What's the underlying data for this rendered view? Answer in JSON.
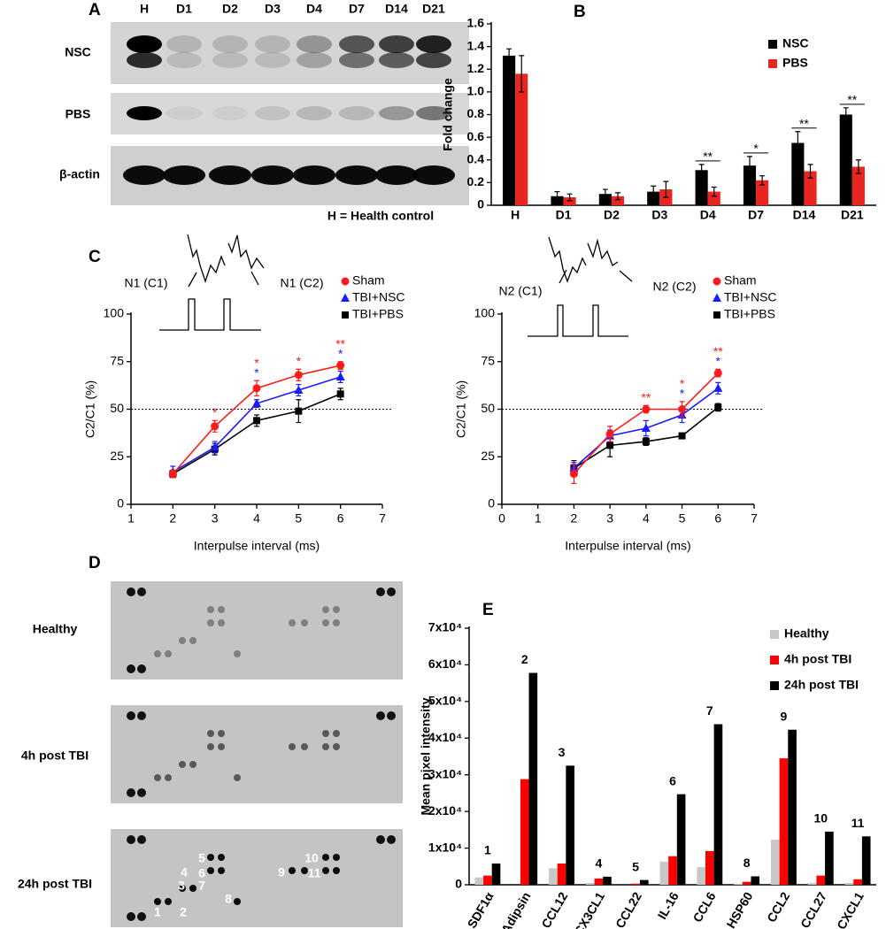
{
  "figure": {
    "panel_labels": [
      "A",
      "B",
      "C",
      "D",
      "E"
    ],
    "blot": {
      "lanes": [
        "H",
        "D1",
        "D2",
        "D3",
        "D4",
        "D7",
        "D14",
        "D21"
      ],
      "rows": [
        "NSC",
        "PBS",
        "β-actin"
      ],
      "note": "H = Health control"
    },
    "array": {
      "rows": [
        "Healthy",
        "4h post TBI",
        "24h post TBI"
      ],
      "spot_numbers": [
        "1",
        "2",
        "3",
        "4",
        "5",
        "6",
        "7",
        "8",
        "9",
        "10",
        "11"
      ]
    }
  },
  "chart_data": [
    {
      "type": "bar",
      "y_label": "Fold change",
      "categories": [
        "H",
        "D1",
        "D2",
        "D3",
        "D4",
        "D7",
        "D14",
        "D21"
      ],
      "series": [
        {
          "name": "NSC",
          "color": "#000000",
          "values": [
            1.32,
            0.08,
            0.1,
            0.12,
            0.31,
            0.35,
            0.55,
            0.8
          ],
          "errors": [
            0.06,
            0.04,
            0.04,
            0.05,
            0.05,
            0.08,
            0.1,
            0.06
          ]
        },
        {
          "name": "PBS",
          "color": "#e8251e",
          "values": [
            1.16,
            0.07,
            0.08,
            0.14,
            0.12,
            0.22,
            0.3,
            0.34
          ],
          "errors": [
            0.16,
            0.03,
            0.03,
            0.07,
            0.04,
            0.04,
            0.06,
            0.06
          ]
        }
      ],
      "significance": [
        null,
        null,
        null,
        null,
        "**",
        "*",
        "**",
        "**"
      ],
      "ylim": [
        0,
        1.6
      ],
      "yticks": [
        0,
        0.2,
        0.4,
        0.6,
        0.8,
        {
          "value": 1,
          "label": "1.0"
        },
        1.2,
        1.4,
        1.6
      ],
      "legend": "upper right"
    },
    {
      "type": "line",
      "x_label": "Interpulse interval (ms)",
      "y_label": "C2/C1 (%)",
      "inset_labels": [
        "N1 (C1)",
        "N1 (C2)"
      ],
      "x": [
        2,
        3,
        4,
        5,
        6
      ],
      "series": [
        {
          "name": "Sham",
          "color": "#ff1a1a",
          "marker": "circle",
          "values": [
            16,
            41,
            61,
            68,
            73
          ],
          "errors": [
            2,
            3,
            4,
            3,
            2
          ],
          "significance": [
            null,
            "*",
            "*",
            "*",
            "**"
          ]
        },
        {
          "name": "TBI+NSC",
          "color": "#1a1aff",
          "marker": "triangle",
          "values": [
            17,
            30,
            53,
            60,
            67
          ],
          "errors": [
            3,
            3,
            2,
            3,
            3
          ],
          "significance": [
            null,
            null,
            "*",
            null,
            "*"
          ]
        },
        {
          "name": "TBI+PBS",
          "color": "#000000",
          "marker": "square",
          "values": [
            16,
            29,
            44,
            49,
            58
          ],
          "errors": [
            2,
            3,
            3,
            6,
            3
          ]
        }
      ],
      "hline": 50,
      "xlim": [
        1,
        7
      ],
      "xticks": [
        1,
        2,
        3,
        4,
        5,
        6,
        7
      ],
      "ylim": [
        0,
        100
      ],
      "yticks": [
        0,
        25,
        50,
        75,
        100
      ],
      "legend": "upper right"
    },
    {
      "type": "line",
      "x_label": "Interpulse interval (ms)",
      "y_label": "C2/C1 (%)",
      "inset_labels": [
        "N2 (C1)",
        "N2 (C2)"
      ],
      "x": [
        2,
        3,
        4,
        5,
        6
      ],
      "series": [
        {
          "name": "Sham",
          "color": "#ff1a1a",
          "marker": "circle",
          "values": [
            16,
            37,
            50,
            50,
            69
          ],
          "errors": [
            5,
            4,
            2,
            4,
            2
          ],
          "significance": [
            null,
            null,
            "**",
            "*",
            "**"
          ]
        },
        {
          "name": "TBI+NSC",
          "color": "#1a1aff",
          "marker": "triangle",
          "values": [
            19,
            36,
            40,
            47,
            61
          ],
          "errors": [
            3,
            3,
            4,
            4,
            3
          ],
          "significance": [
            null,
            null,
            null,
            "*",
            "*"
          ]
        },
        {
          "name": "TBI+PBS",
          "color": "#000000",
          "marker": "square",
          "values": [
            19,
            31,
            33,
            36,
            51
          ],
          "errors": [
            4,
            6,
            2,
            1,
            2
          ]
        }
      ],
      "hline": 50,
      "xlim": [
        0,
        7
      ],
      "xticks": [
        0,
        1,
        2,
        3,
        4,
        5,
        6,
        7
      ],
      "ylim": [
        0,
        100
      ],
      "yticks": [
        0,
        25,
        50,
        75,
        100
      ],
      "legend": "upper right"
    },
    {
      "type": "bar",
      "y_label": "Mean pixel intensity",
      "categories": [
        "SDF1α",
        "Adipsin",
        "CCL12",
        "CX3CL1",
        "CCL22",
        "IL-16",
        "CCL6",
        "HSP60",
        "CCL2",
        "CCL27",
        "CXCL1"
      ],
      "group_numbers": [
        "1",
        "2",
        "3",
        "4",
        "5",
        "6",
        "7",
        "8",
        "9",
        "10",
        "11"
      ],
      "series": [
        {
          "name": "Healthy",
          "color": "#c8c8c8",
          "values": [
            2000,
            0,
            4500,
            500,
            0,
            6300,
            4800,
            300,
            12300,
            500,
            500
          ]
        },
        {
          "name": "4h post TBI",
          "color": "#ff0000",
          "values": [
            2500,
            28800,
            5800,
            1700,
            300,
            7800,
            9200,
            800,
            34500,
            2500,
            1500
          ]
        },
        {
          "name": "24h post TBI",
          "color": "#000000",
          "values": [
            5800,
            57800,
            32500,
            2200,
            1300,
            24700,
            43800,
            2300,
            42300,
            14500,
            13200
          ]
        }
      ],
      "ylim": [
        0,
        70000
      ],
      "yticks": [
        0,
        {
          "value": 10000,
          "label": "1x10⁴"
        },
        {
          "value": 20000,
          "label": "2x10⁴"
        },
        {
          "value": 30000,
          "label": "3x10⁴"
        },
        {
          "value": 40000,
          "label": "4x10⁴"
        },
        {
          "value": 50000,
          "label": "5x10⁴"
        },
        {
          "value": 60000,
          "label": "6x10⁴"
        },
        {
          "value": 70000,
          "label": "7x10⁴"
        }
      ],
      "legend": "upper right"
    }
  ]
}
